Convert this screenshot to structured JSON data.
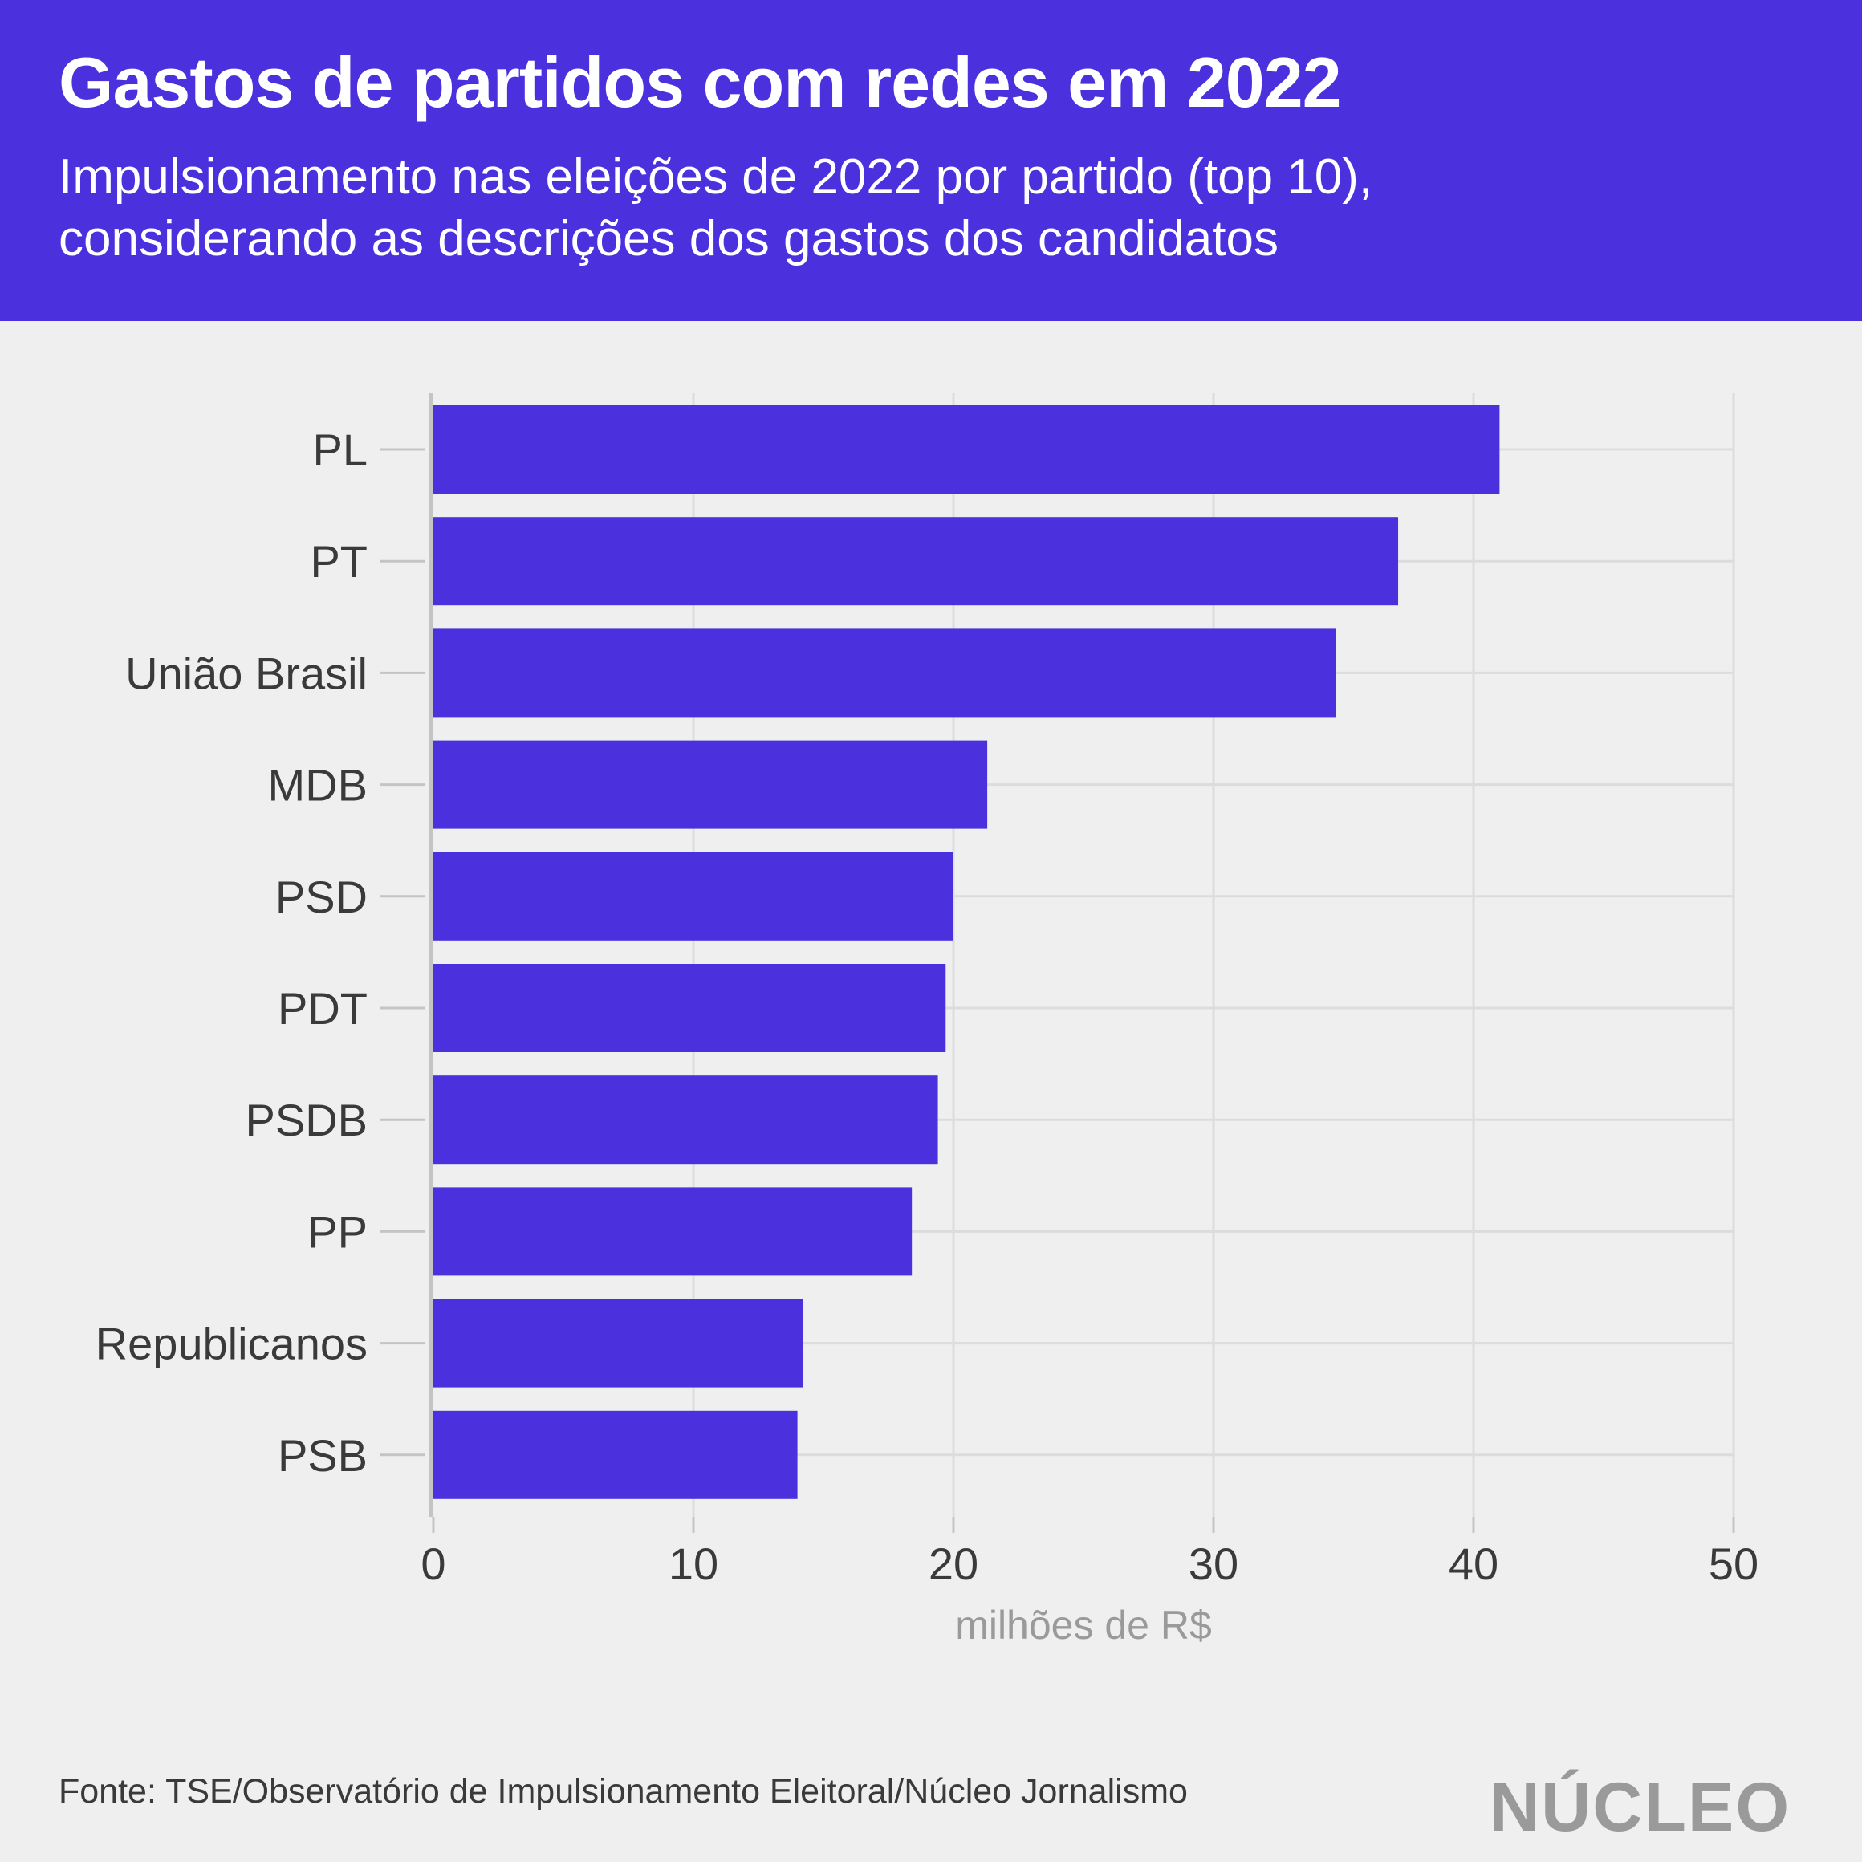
{
  "header": {
    "title": "Gastos de partidos com redes em 2022",
    "subtitle_line1": "Impulsionamento nas eleições de 2022 por partido (top 10),",
    "subtitle_line2": "considerando as descrições dos gastos dos candidatos"
  },
  "footer": {
    "source": "Fonte: TSE/Observatório de Impulsionamento Eleitoral/Núcleo Jornalismo",
    "logo": "NÚCLEO"
  },
  "colors": {
    "header_background": "#4a31dd",
    "bar": "#4a31dd",
    "page_background": "#efefef",
    "grid": "#dcdcdc",
    "axis_line": "#c4c4c4",
    "logo": "#9a9a9a"
  },
  "chart_data": {
    "type": "bar",
    "orientation": "horizontal",
    "title": "Gastos de partidos com redes em 2022",
    "subtitle": "Impulsionamento nas eleições de 2022 por partido (top 10), considerando as descrições dos gastos dos candidatos",
    "categories": [
      "PL",
      "PT",
      "União Brasil",
      "MDB",
      "PSD",
      "PDT",
      "PSDB",
      "PP",
      "Republicanos",
      "PSB"
    ],
    "values": [
      41.0,
      37.1,
      34.7,
      21.3,
      20.0,
      19.7,
      19.4,
      18.4,
      14.2,
      14.0
    ],
    "xlabel": "milhões de R$",
    "ylabel": "",
    "xlim": [
      0,
      50
    ],
    "xticks": [
      0,
      10,
      20,
      30,
      40,
      50
    ],
    "xtick_labels": [
      "0",
      "10",
      "20",
      "30",
      "40",
      "50"
    ],
    "grid": true,
    "legend": "none"
  }
}
